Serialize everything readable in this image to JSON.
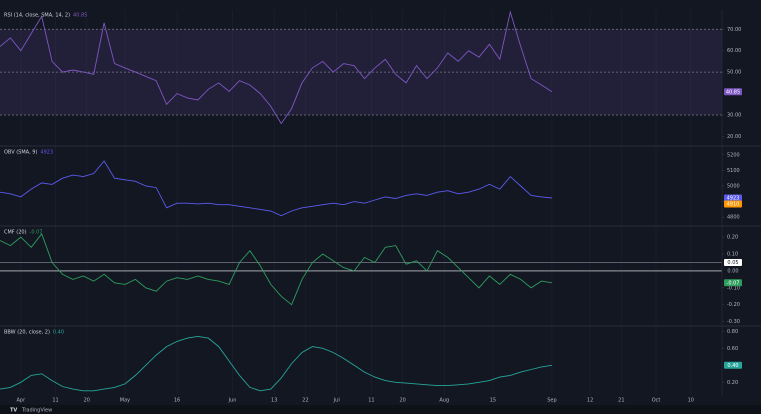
{
  "x_axis": {
    "x": [
      -6,
      -3,
      0,
      3,
      6,
      9,
      12,
      15,
      18,
      21,
      24,
      27,
      30,
      33,
      36,
      39,
      42,
      45,
      48,
      51,
      54,
      57,
      60,
      63,
      66,
      69,
      72,
      75,
      78,
      81,
      84,
      87,
      90,
      93,
      96,
      99,
      102,
      105,
      108,
      111,
      114,
      117,
      120,
      123,
      126,
      129,
      132,
      135,
      138,
      141,
      144,
      147,
      150,
      153
    ],
    "xlim": [
      -6,
      202
    ],
    "xticks": [
      {
        "value": 0,
        "label": "Apr"
      },
      {
        "value": 10,
        "label": "11"
      },
      {
        "value": 19,
        "label": "20"
      },
      {
        "value": 30,
        "label": "May"
      },
      {
        "value": 45,
        "label": "16"
      },
      {
        "value": 61,
        "label": "Jun"
      },
      {
        "value": 73,
        "label": "13"
      },
      {
        "value": 82,
        "label": "22"
      },
      {
        "value": 91,
        "label": "Jul"
      },
      {
        "value": 101,
        "label": "11"
      },
      {
        "value": 110,
        "label": "20"
      },
      {
        "value": 122,
        "label": "Aug"
      },
      {
        "value": 136,
        "label": "15"
      },
      {
        "value": 153,
        "label": "Sep"
      },
      {
        "value": 164,
        "label": "12"
      },
      {
        "value": 173,
        "label": "21"
      },
      {
        "value": 183,
        "label": "Oct"
      },
      {
        "value": 193,
        "label": "10"
      }
    ]
  },
  "footer": "TradingView",
  "chart_data": [
    {
      "type": "line",
      "title": "RSI (14, close, SMA, 14, 2)",
      "color": "#7e57c2",
      "last_label": "40.85",
      "values": [
        62,
        66,
        60,
        68,
        76,
        55,
        50,
        51,
        50,
        49,
        73,
        54,
        52,
        50,
        48,
        46,
        35,
        40,
        38,
        37,
        42,
        45,
        41,
        46,
        44,
        40,
        34,
        26,
        33,
        45,
        52,
        55,
        50,
        54,
        53,
        47,
        52,
        56,
        49,
        45,
        53,
        47,
        52,
        59,
        55,
        60,
        57,
        63,
        56,
        78,
        62,
        47,
        44,
        40.85
      ],
      "ylim": [
        16,
        79
      ],
      "band": [
        30,
        70
      ],
      "ref_lines": [
        70,
        50,
        30
      ],
      "yticks": [
        {
          "value": 20,
          "label": "20.00"
        },
        {
          "value": 30,
          "label": "30.00"
        },
        {
          "value": 50,
          "label": "50.00"
        },
        {
          "value": 60,
          "label": "60.00"
        },
        {
          "value": 70,
          "label": "70.00"
        }
      ]
    },
    {
      "type": "line",
      "title": "OBV (SMA, 9)",
      "color": "#5b5bf0",
      "last_label": "4923",
      "sma_last": 4910,
      "sma_color": "#ff9800",
      "values": [
        4960,
        4950,
        4930,
        4980,
        5020,
        5010,
        5050,
        5070,
        5060,
        5080,
        5160,
        5050,
        5040,
        5030,
        5000,
        4990,
        4860,
        4890,
        4890,
        4885,
        4890,
        4880,
        4880,
        4870,
        4860,
        4850,
        4840,
        4810,
        4840,
        4860,
        4870,
        4880,
        4890,
        4880,
        4900,
        4890,
        4910,
        4930,
        4920,
        4940,
        4950,
        4940,
        4960,
        4970,
        4950,
        4960,
        4980,
        5010,
        4980,
        5060,
        5000,
        4940,
        4930,
        4923
      ],
      "ylim": [
        4750,
        5250
      ],
      "yticks": [
        4800,
        4900,
        5000,
        5100,
        5200
      ]
    },
    {
      "type": "line",
      "title": "CMF (20)",
      "color": "#2e9d5e",
      "last_label": "-0.07",
      "values": [
        0.18,
        0.15,
        0.2,
        0.14,
        0.22,
        0.05,
        -0.02,
        -0.05,
        -0.03,
        -0.06,
        -0.02,
        -0.07,
        -0.08,
        -0.05,
        -0.1,
        -0.12,
        -0.06,
        -0.04,
        -0.05,
        -0.03,
        -0.05,
        -0.06,
        -0.08,
        0.05,
        0.12,
        0.03,
        -0.08,
        -0.15,
        -0.2,
        -0.05,
        0.05,
        0.1,
        0.06,
        0.02,
        0,
        0.08,
        0.05,
        0.14,
        0.15,
        0.04,
        0.06,
        0,
        0.12,
        0.08,
        0.02,
        -0.04,
        -0.1,
        -0.03,
        -0.08,
        -0.02,
        -0.05,
        -0.1,
        -0.06,
        -0.07
      ],
      "ylim": [
        -0.32,
        0.26
      ],
      "ref_lines": [
        {
          "value": 0.05,
          "label": "0.05"
        },
        {
          "value": 0,
          "label": "0.00"
        }
      ],
      "yticks": [
        {
          "value": 0.2,
          "label": "0.20"
        },
        {
          "value": 0.1,
          "label": "0.10"
        },
        {
          "value": -0.1,
          "label": "-0.10"
        },
        {
          "value": -0.2,
          "label": "-0.20"
        },
        {
          "value": -0.3,
          "label": "-0.30"
        }
      ]
    },
    {
      "type": "line",
      "title": "BBW (20, close, 2)",
      "color": "#26a69a",
      "last_label": "0.40",
      "values": [
        0.12,
        0.14,
        0.2,
        0.28,
        0.3,
        0.22,
        0.15,
        0.12,
        0.1,
        0.1,
        0.12,
        0.14,
        0.18,
        0.28,
        0.4,
        0.52,
        0.62,
        0.68,
        0.72,
        0.74,
        0.72,
        0.62,
        0.45,
        0.28,
        0.14,
        0.1,
        0.12,
        0.25,
        0.42,
        0.55,
        0.62,
        0.6,
        0.55,
        0.48,
        0.4,
        0.32,
        0.26,
        0.22,
        0.2,
        0.19,
        0.18,
        0.17,
        0.16,
        0.16,
        0.17,
        0.18,
        0.2,
        0.22,
        0.26,
        0.28,
        0.32,
        0.35,
        0.38,
        0.4
      ],
      "ylim": [
        0.05,
        0.85
      ],
      "yticks": [
        {
          "value": 0.2,
          "label": "0.20"
        },
        {
          "value": 0.6,
          "label": "0.60"
        },
        {
          "value": 0.8,
          "label": "0.80"
        }
      ]
    }
  ]
}
